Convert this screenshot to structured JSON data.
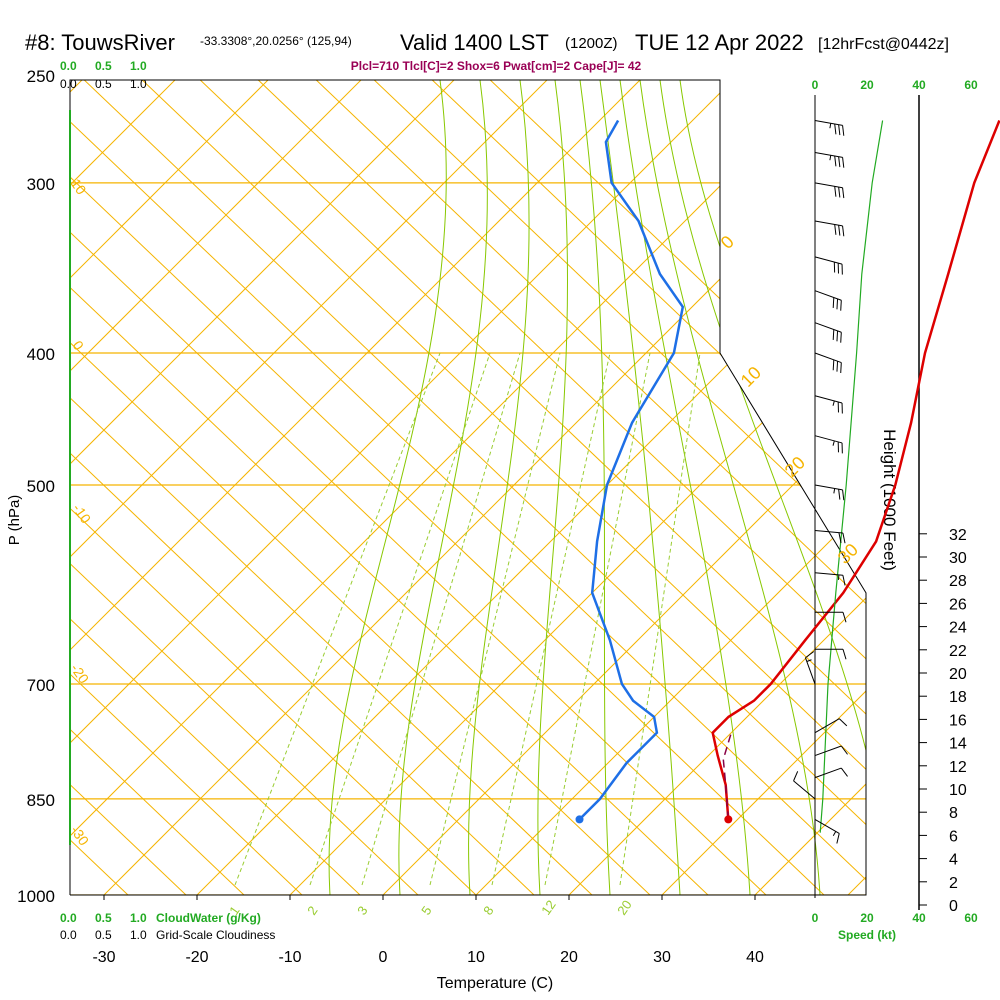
{
  "header": {
    "station": "#8: TouwsRiver",
    "coords": "-33.3308°,20.0256° (125,94)",
    "valid": "Valid 1400 LST",
    "utc": "(1200Z)",
    "date": "TUE 12 Apr 2022",
    "forecast": "[12hrFcst@0442z]",
    "indices": "Plcl=710 Tlcl[C]=2 Shox=6 Pwat[cm]=2 Cape[J]= 42"
  },
  "colors": {
    "isotherm": "#f5b400",
    "dry_adiabat": "#88c800",
    "mixing_ratio": "#9acd32",
    "temperature": "#dd0000",
    "dewpoint": "#1e6fe6",
    "parcel": "#880044",
    "green_text": "#22aa22",
    "indices_text": "#990055"
  },
  "chart_data": {
    "type": "line",
    "title": "",
    "xlabel": "Temperature (C)",
    "ylabel": "P (hPa)",
    "y2label": "Height (1000 Feet)",
    "x_ticks": [
      "-30",
      "-20",
      "-10",
      "0",
      "10",
      "20",
      "30",
      "40"
    ],
    "y_ticks": [
      "250",
      "300",
      "400",
      "500",
      "700",
      "850",
      "1000"
    ],
    "height_ticks": [
      "0",
      "2",
      "4",
      "6",
      "8",
      "10",
      "12",
      "14",
      "16",
      "18",
      "20",
      "22",
      "24",
      "26",
      "28",
      "30",
      "32"
    ],
    "cloud_scale_top_green": [
      "0.0",
      "0.5",
      "1.0"
    ],
    "cloud_scale_top_black": [
      "0.0",
      "0.5",
      "1.0"
    ],
    "cloud_scale_bottom_green": [
      "0.0",
      "0.5",
      "1.0"
    ],
    "cloud_scale_bottom_black": [
      "0.0",
      "0.5",
      "1.0"
    ],
    "cloudwater_label": "CloudWater (g/Kg)",
    "cloudiness_label": "Grid-Scale Cloudiness",
    "speed_ticks": [
      "0",
      "20",
      "40",
      "60"
    ],
    "speed_label": "Speed (kt)",
    "isotherm_labels": [
      "10",
      "0",
      "-10",
      "-20",
      "-30"
    ],
    "isotherm_labels_right": [
      "0",
      "10",
      "20",
      "30"
    ],
    "mixing_ratio_labels": [
      "1",
      "2",
      "3",
      "5",
      "8",
      "12",
      "20"
    ],
    "series": [
      {
        "name": "Temperature",
        "points": [
          [
            29,
            880
          ],
          [
            25,
            830
          ],
          [
            21,
            790
          ],
          [
            18,
            760
          ],
          [
            18,
            740
          ],
          [
            19,
            720
          ],
          [
            19,
            700
          ],
          [
            18,
            650
          ],
          [
            17,
            600
          ],
          [
            15,
            550
          ],
          [
            11,
            500
          ],
          [
            6,
            450
          ],
          [
            0,
            400
          ],
          [
            -6,
            350
          ],
          [
            -13,
            300
          ],
          [
            -17,
            270
          ]
        ]
      },
      {
        "name": "Dewpoint",
        "points": [
          [
            13,
            880
          ],
          [
            13,
            850
          ],
          [
            12,
            800
          ],
          [
            12,
            760
          ],
          [
            10,
            740
          ],
          [
            6,
            720
          ],
          [
            3,
            700
          ],
          [
            -3,
            650
          ],
          [
            -10,
            600
          ],
          [
            -15,
            550
          ],
          [
            -20,
            500
          ],
          [
            -24,
            450
          ],
          [
            -27,
            400
          ],
          [
            -31,
            370
          ],
          [
            -37,
            350
          ],
          [
            -45,
            320
          ],
          [
            -52,
            300
          ],
          [
            -57,
            280
          ],
          [
            -58,
            270
          ]
        ]
      },
      {
        "name": "Parcel",
        "points": [
          [
            29,
            880
          ],
          [
            25,
            830
          ],
          [
            22,
            795
          ],
          [
            20,
            760
          ]
        ]
      }
    ],
    "surface": {
      "temperature": 29,
      "dewpoint": 13,
      "pressure": 880
    },
    "wind_barbs": [
      {
        "p": 270,
        "dir": 280,
        "spd": 35
      },
      {
        "p": 285,
        "dir": 280,
        "spd": 35
      },
      {
        "p": 300,
        "dir": 280,
        "spd": 30
      },
      {
        "p": 320,
        "dir": 280,
        "spd": 30
      },
      {
        "p": 340,
        "dir": 285,
        "spd": 30
      },
      {
        "p": 360,
        "dir": 290,
        "spd": 30
      },
      {
        "p": 380,
        "dir": 290,
        "spd": 30
      },
      {
        "p": 400,
        "dir": 290,
        "spd": 30
      },
      {
        "p": 430,
        "dir": 285,
        "spd": 25
      },
      {
        "p": 460,
        "dir": 285,
        "spd": 25
      },
      {
        "p": 500,
        "dir": 280,
        "spd": 25
      },
      {
        "p": 540,
        "dir": 275,
        "spd": 20
      },
      {
        "p": 580,
        "dir": 275,
        "spd": 15
      },
      {
        "p": 620,
        "dir": 270,
        "spd": 10
      },
      {
        "p": 660,
        "dir": 270,
        "spd": 10
      },
      {
        "p": 700,
        "dir": 160,
        "spd": 15
      },
      {
        "p": 760,
        "dir": 240,
        "spd": 10
      },
      {
        "p": 790,
        "dir": 250,
        "spd": 10
      },
      {
        "p": 820,
        "dir": 250,
        "spd": 10
      },
      {
        "p": 850,
        "dir": 130,
        "spd": 10
      },
      {
        "p": 880,
        "dir": 300,
        "spd": 15
      }
    ],
    "wind_speed_profile": [
      [
        2,
        900
      ],
      [
        3,
        850
      ],
      [
        5,
        700
      ],
      [
        8,
        600
      ],
      [
        12,
        500
      ],
      [
        16,
        400
      ],
      [
        18,
        350
      ],
      [
        22,
        300
      ],
      [
        26,
        270
      ]
    ]
  }
}
